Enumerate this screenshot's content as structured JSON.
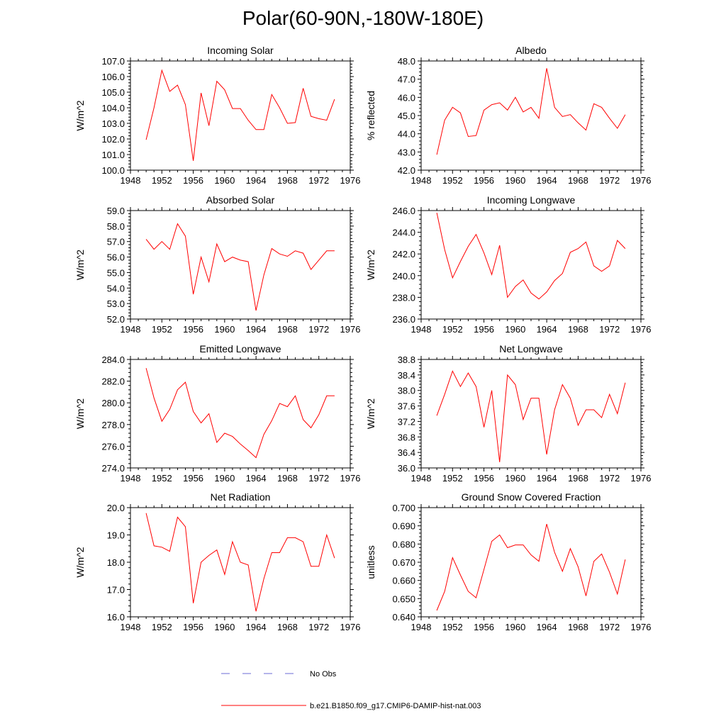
{
  "title": "Polar(60-90N,-180W-180E)",
  "colors": {
    "model_line": "#ff0000",
    "obs_line": "#6b6bd6",
    "axis": "#000000"
  },
  "legend": [
    {
      "label": "No Obs",
      "style": "dashed",
      "color": "#6b6bd6"
    },
    {
      "label": "b.e21.B1850.f09_g17.CMIP6-DAMIP-hist-nat.003",
      "style": "solid",
      "color": "#ff0000"
    }
  ],
  "chart_data": [
    {
      "type": "line",
      "title": "Incoming Solar",
      "xlabel": "",
      "ylabel": "W/m^2",
      "xlim": [
        1948,
        1976
      ],
      "xticks": [
        1948,
        1952,
        1956,
        1960,
        1964,
        1968,
        1972,
        1976
      ],
      "ylim": [
        100.0,
        107.0
      ],
      "yticks": [
        100.0,
        101.0,
        102.0,
        103.0,
        104.0,
        105.0,
        106.0,
        107.0
      ],
      "ydecimals": 1,
      "series": [
        {
          "x": [
            1950,
            1951,
            1952,
            1953,
            1954,
            1955,
            1956,
            1957,
            1958,
            1959,
            1960,
            1961,
            1962,
            1963,
            1964,
            1965,
            1966,
            1967,
            1968,
            1969,
            1970,
            1971,
            1972,
            1973,
            1974
          ],
          "y": [
            101.95,
            104.0,
            106.4,
            105.05,
            105.45,
            104.2,
            100.6,
            104.95,
            102.85,
            105.7,
            105.15,
            103.95,
            103.95,
            103.2,
            102.6,
            102.6,
            104.85,
            104.0,
            103.0,
            103.05,
            105.25,
            103.45,
            103.3,
            103.2,
            104.55
          ]
        }
      ]
    },
    {
      "type": "line",
      "title": "Albedo",
      "xlabel": "",
      "ylabel": "% reflected",
      "xlim": [
        1948,
        1976
      ],
      "xticks": [
        1948,
        1952,
        1956,
        1960,
        1964,
        1968,
        1972,
        1976
      ],
      "ylim": [
        42.0,
        48.0
      ],
      "yticks": [
        42.0,
        43.0,
        44.0,
        45.0,
        46.0,
        47.0,
        48.0
      ],
      "ydecimals": 1,
      "series": [
        {
          "x": [
            1950,
            1951,
            1952,
            1953,
            1954,
            1955,
            1956,
            1957,
            1958,
            1959,
            1960,
            1961,
            1962,
            1963,
            1964,
            1965,
            1966,
            1967,
            1968,
            1969,
            1970,
            1971,
            1972,
            1973,
            1974
          ],
          "y": [
            42.85,
            44.75,
            45.45,
            45.15,
            43.85,
            43.9,
            45.3,
            45.6,
            45.7,
            45.3,
            46.0,
            45.2,
            45.45,
            44.85,
            47.6,
            45.45,
            44.95,
            45.05,
            44.6,
            44.2,
            45.65,
            45.45,
            44.85,
            44.3,
            45.05
          ]
        }
      ]
    },
    {
      "type": "line",
      "title": "Absorbed Solar",
      "xlabel": "",
      "ylabel": "W/m^2",
      "xlim": [
        1948,
        1976
      ],
      "xticks": [
        1948,
        1952,
        1956,
        1960,
        1964,
        1968,
        1972,
        1976
      ],
      "ylim": [
        52.0,
        59.0
      ],
      "yticks": [
        52.0,
        53.0,
        54.0,
        55.0,
        56.0,
        57.0,
        58.0,
        59.0
      ],
      "ydecimals": 1,
      "series": [
        {
          "x": [
            1950,
            1951,
            1952,
            1953,
            1954,
            1955,
            1956,
            1957,
            1958,
            1959,
            1960,
            1961,
            1962,
            1963,
            1964,
            1965,
            1966,
            1967,
            1968,
            1969,
            1970,
            1971,
            1972,
            1973,
            1974
          ],
          "y": [
            57.15,
            56.5,
            57.0,
            56.5,
            58.15,
            57.35,
            53.6,
            56.0,
            54.4,
            56.85,
            55.7,
            56.0,
            55.8,
            55.7,
            52.55,
            54.85,
            56.55,
            56.2,
            56.05,
            56.4,
            56.25,
            55.2,
            55.8,
            56.4,
            56.4
          ]
        }
      ]
    },
    {
      "type": "line",
      "title": "Incoming Longwave",
      "xlabel": "",
      "ylabel": "W/m^2",
      "xlim": [
        1948,
        1976
      ],
      "xticks": [
        1948,
        1952,
        1956,
        1960,
        1964,
        1968,
        1972,
        1976
      ],
      "ylim": [
        236.0,
        246.0
      ],
      "yticks": [
        236.0,
        238.0,
        240.0,
        242.0,
        244.0,
        246.0
      ],
      "ydecimals": 1,
      "series": [
        {
          "x": [
            1950,
            1951,
            1952,
            1953,
            1954,
            1955,
            1956,
            1957,
            1958,
            1959,
            1960,
            1961,
            1962,
            1963,
            1964,
            1965,
            1966,
            1967,
            1968,
            1969,
            1970,
            1971,
            1972,
            1973,
            1974
          ],
          "y": [
            245.8,
            242.4,
            239.8,
            241.3,
            242.7,
            243.8,
            242.1,
            240.1,
            242.8,
            238.0,
            239.0,
            239.6,
            238.4,
            237.85,
            238.5,
            239.55,
            240.2,
            242.15,
            242.5,
            243.1,
            240.9,
            240.4,
            240.9,
            243.25,
            242.5
          ]
        }
      ]
    },
    {
      "type": "line",
      "title": "Emitted Longwave",
      "xlabel": "",
      "ylabel": "W/m^2",
      "xlim": [
        1948,
        1976
      ],
      "xticks": [
        1948,
        1952,
        1956,
        1960,
        1964,
        1968,
        1972,
        1976
      ],
      "ylim": [
        274.0,
        284.0
      ],
      "yticks": [
        274.0,
        276.0,
        278.0,
        280.0,
        282.0,
        284.0
      ],
      "ydecimals": 1,
      "series": [
        {
          "x": [
            1950,
            1951,
            1952,
            1953,
            1954,
            1955,
            1956,
            1957,
            1958,
            1959,
            1960,
            1961,
            1962,
            1963,
            1964,
            1965,
            1966,
            1967,
            1968,
            1969,
            1970,
            1971,
            1972,
            1973,
            1974
          ],
          "y": [
            283.2,
            280.45,
            278.3,
            279.4,
            281.2,
            281.9,
            279.2,
            278.15,
            279.0,
            276.35,
            277.2,
            276.9,
            276.2,
            275.6,
            274.95,
            277.1,
            278.35,
            279.95,
            279.65,
            280.65,
            278.45,
            277.7,
            278.9,
            280.65,
            280.65
          ]
        }
      ]
    },
    {
      "type": "line",
      "title": "Net Longwave",
      "xlabel": "",
      "ylabel": "W/m^2",
      "xlim": [
        1948,
        1976
      ],
      "xticks": [
        1948,
        1952,
        1956,
        1960,
        1964,
        1968,
        1972,
        1976
      ],
      "ylim": [
        36.0,
        38.8
      ],
      "yticks": [
        36.0,
        36.4,
        36.8,
        37.2,
        37.6,
        38.0,
        38.4,
        38.8
      ],
      "ydecimals": 1,
      "series": [
        {
          "x": [
            1950,
            1951,
            1952,
            1953,
            1954,
            1955,
            1956,
            1957,
            1958,
            1959,
            1960,
            1961,
            1962,
            1963,
            1964,
            1965,
            1966,
            1967,
            1968,
            1969,
            1970,
            1971,
            1972,
            1973,
            1974
          ],
          "y": [
            37.35,
            37.9,
            38.5,
            38.1,
            38.45,
            38.1,
            37.05,
            38.0,
            36.15,
            38.4,
            38.15,
            37.25,
            37.8,
            37.8,
            36.35,
            37.5,
            38.15,
            37.8,
            37.1,
            37.5,
            37.5,
            37.3,
            37.9,
            37.4,
            38.2
          ]
        }
      ]
    },
    {
      "type": "line",
      "title": "Net Radiation",
      "xlabel": "",
      "ylabel": "W/m^2",
      "xlim": [
        1948,
        1976
      ],
      "xticks": [
        1948,
        1952,
        1956,
        1960,
        1964,
        1968,
        1972,
        1976
      ],
      "ylim": [
        16.0,
        20.0
      ],
      "yticks": [
        16.0,
        17.0,
        18.0,
        19.0,
        20.0
      ],
      "ydecimals": 1,
      "series": [
        {
          "x": [
            1950,
            1951,
            1952,
            1953,
            1954,
            1955,
            1956,
            1957,
            1958,
            1959,
            1960,
            1961,
            1962,
            1963,
            1964,
            1965,
            1966,
            1967,
            1968,
            1969,
            1970,
            1971,
            1972,
            1973,
            1974
          ],
          "y": [
            19.8,
            18.6,
            18.55,
            18.4,
            19.65,
            19.3,
            16.5,
            18.0,
            18.25,
            18.45,
            17.55,
            18.75,
            18.0,
            17.9,
            16.2,
            17.4,
            18.35,
            18.35,
            18.9,
            18.9,
            18.75,
            17.85,
            17.85,
            19.0,
            18.15
          ]
        }
      ]
    },
    {
      "type": "line",
      "title": "Ground Snow Covered Fraction",
      "xlabel": "",
      "ylabel": "unitless",
      "xlim": [
        1948,
        1976
      ],
      "xticks": [
        1948,
        1952,
        1956,
        1960,
        1964,
        1968,
        1972,
        1976
      ],
      "ylim": [
        0.64,
        0.7
      ],
      "yticks": [
        0.64,
        0.65,
        0.66,
        0.67,
        0.68,
        0.69,
        0.7
      ],
      "ydecimals": 3,
      "series": [
        {
          "x": [
            1950,
            1951,
            1952,
            1953,
            1954,
            1955,
            1956,
            1957,
            1958,
            1959,
            1960,
            1961,
            1962,
            1963,
            1964,
            1965,
            1966,
            1967,
            1968,
            1969,
            1970,
            1971,
            1972,
            1973,
            1974
          ],
          "y": [
            0.6435,
            0.654,
            0.6725,
            0.663,
            0.654,
            0.6505,
            0.666,
            0.6815,
            0.685,
            0.678,
            0.6795,
            0.6795,
            0.674,
            0.6705,
            0.691,
            0.6755,
            0.665,
            0.6775,
            0.6675,
            0.6515,
            0.6705,
            0.6745,
            0.6645,
            0.6525,
            0.6715
          ]
        }
      ]
    }
  ]
}
